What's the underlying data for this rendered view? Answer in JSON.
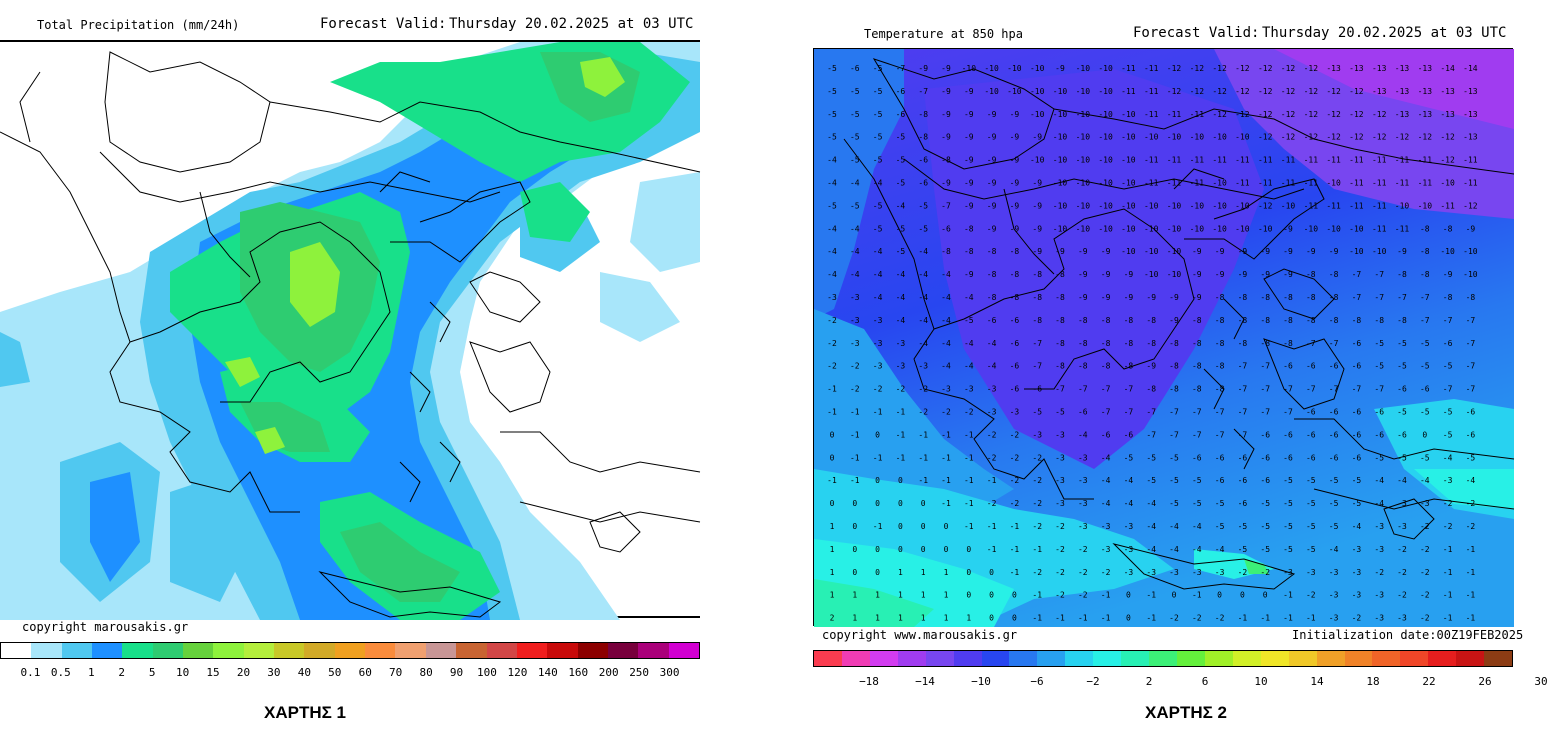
{
  "map1": {
    "title": "Total Precipitation (mm/24h)",
    "forecast_label": "Forecast Valid:",
    "forecast_time": "Thursday 20.02.2025 at 03 UTC",
    "copyright": "copyright marousakis.gr",
    "caption": "ΧΑΡΤΗΣ 1",
    "legend_ticks": [
      "0.1",
      "0.5",
      "1",
      "2",
      "5",
      "10",
      "15",
      "20",
      "30",
      "40",
      "50",
      "60",
      "70",
      "80",
      "90",
      "100",
      "120",
      "140",
      "160",
      "200",
      "250",
      "300"
    ],
    "legend_colors": [
      "#ffffff",
      "#a8e6fa",
      "#50c8f0",
      "#1e90ff",
      "#18e08a",
      "#2ecc71",
      "#66d23c",
      "#8ef23c",
      "#b4ee3c",
      "#c8c828",
      "#d2aa28",
      "#f0a020",
      "#fa8c3c",
      "#f0a070",
      "#c89696",
      "#c86432",
      "#d24646",
      "#f01e1e",
      "#c80a0a",
      "#8c0000",
      "#78003c",
      "#aa007a",
      "#d200d2"
    ]
  },
  "map2": {
    "title": "Temperature at 850 hpa",
    "forecast_label": "Forecast Valid:",
    "forecast_time": "Thursday 20.02.2025 at 03 UTC",
    "copyright": "copyright www.marousakis.gr",
    "init": "Initialization date:00Z19FEB2025",
    "caption": "ΧΑΡΤΗΣ 2",
    "legend_ticks": [
      "−18",
      "−14",
      "−10",
      "−6",
      "−2",
      "2",
      "6",
      "10",
      "14",
      "18",
      "22",
      "26",
      "30"
    ],
    "legend_colors": [
      "#fa3c50",
      "#f03cb4",
      "#d23cf0",
      "#a03cf0",
      "#7846f0",
      "#503cf0",
      "#2846f0",
      "#2878f0",
      "#28a0f0",
      "#28d2f0",
      "#28f0e6",
      "#28f0b4",
      "#3cf078",
      "#64f03c",
      "#a0f028",
      "#d2f028",
      "#f0e628",
      "#f0c828",
      "#f0a028",
      "#f08228",
      "#f06428",
      "#f04628",
      "#e61e1e",
      "#c81414",
      "#8c3c14"
    ],
    "grid_values": [
      [
        -5,
        -6,
        -5,
        -7,
        -9,
        -9,
        -10,
        -10,
        -10,
        -10,
        -9,
        -10,
        -10,
        -11,
        -11,
        -12,
        -12,
        -12,
        -12,
        -12,
        -12,
        -12,
        -13,
        -13,
        -13,
        -13,
        -13,
        -14,
        -14
      ],
      [
        -5,
        -5,
        -5,
        -6,
        -7,
        -9,
        -9,
        -10,
        -10,
        -10,
        -10,
        -10,
        -10,
        -11,
        -11,
        -12,
        -12,
        -12,
        -12,
        -12,
        -12,
        -12,
        -12,
        -12,
        -13,
        -13,
        -13,
        -13,
        -13
      ],
      [
        -5,
        -5,
        -5,
        -6,
        -8,
        -9,
        -9,
        -9,
        -9,
        -10,
        -10,
        -10,
        -10,
        -10,
        -11,
        -11,
        -11,
        -12,
        -12,
        -12,
        -12,
        -12,
        -12,
        -12,
        -12,
        -13,
        -13,
        -13,
        -13
      ],
      [
        -5,
        -5,
        -5,
        -5,
        -8,
        -9,
        -9,
        -9,
        -9,
        -9,
        -10,
        -10,
        -10,
        -10,
        -10,
        -10,
        -10,
        -10,
        -10,
        -12,
        -12,
        -12,
        -12,
        -12,
        -12,
        -12,
        -12,
        -12,
        -13
      ],
      [
        -4,
        -5,
        -5,
        -5,
        -6,
        -8,
        -9,
        -9,
        -9,
        -10,
        -10,
        -10,
        -10,
        -10,
        -11,
        -11,
        -11,
        -11,
        -11,
        -11,
        -11,
        -11,
        -11,
        -11,
        -11,
        -11,
        -11,
        -12,
        -11
      ],
      [
        -4,
        -4,
        -4,
        -5,
        -6,
        -9,
        -9,
        -9,
        -9,
        -9,
        -10,
        -10,
        -10,
        -10,
        -11,
        -11,
        -11,
        -10,
        -11,
        -11,
        -11,
        -11,
        -10,
        -11,
        -11,
        -11,
        -11,
        -10,
        -11
      ],
      [
        -5,
        -5,
        -5,
        -4,
        -5,
        -7,
        -9,
        -9,
        -9,
        -9,
        -10,
        -10,
        -10,
        -10,
        -10,
        -10,
        -10,
        -10,
        -10,
        -12,
        -10,
        -11,
        -11,
        -11,
        -11,
        -10,
        -10,
        -11,
        -12
      ],
      [
        -4,
        -4,
        -5,
        -5,
        -5,
        -6,
        -8,
        -9,
        -9,
        -9,
        -10,
        -10,
        -10,
        -10,
        -10,
        -10,
        -10,
        -10,
        -10,
        -10,
        -9,
        -10,
        -10,
        -10,
        -11,
        -11,
        -8,
        -8,
        -9
      ],
      [
        -4,
        -4,
        -4,
        -5,
        -4,
        -8,
        -8,
        -8,
        -8,
        -9,
        -9,
        -9,
        -9,
        -10,
        -10,
        -10,
        -9,
        -9,
        -9,
        -9,
        -9,
        -9,
        -9,
        -10,
        -10,
        -9,
        -8,
        -10,
        -10
      ],
      [
        -4,
        -4,
        -4,
        -4,
        -4,
        -4,
        -9,
        -8,
        -8,
        -8,
        -8,
        -9,
        -9,
        -9,
        -10,
        -10,
        -9,
        -9,
        -9,
        -9,
        -9,
        -8,
        -8,
        -7,
        -7,
        -8,
        -8,
        -9,
        -10
      ],
      [
        -3,
        -3,
        -4,
        -4,
        -4,
        -4,
        -4,
        -8,
        -8,
        -8,
        -8,
        -9,
        -9,
        -9,
        -9,
        -9,
        -9,
        -8,
        -8,
        -8,
        -8,
        -8,
        -8,
        -7,
        -7,
        -7,
        -7,
        -8,
        -8
      ],
      [
        -2,
        -3,
        -3,
        -4,
        -4,
        -4,
        -5,
        -6,
        -6,
        -8,
        -8,
        -8,
        -8,
        -8,
        -8,
        -9,
        -8,
        -8,
        -8,
        -8,
        -8,
        -8,
        -8,
        -8,
        -8,
        -8,
        -7,
        -7,
        -7
      ],
      [
        -2,
        -3,
        -3,
        -3,
        -4,
        -4,
        -4,
        -4,
        -6,
        -7,
        -8,
        -8,
        -8,
        -8,
        -8,
        -8,
        -8,
        -8,
        -8,
        -8,
        -8,
        -7,
        -7,
        -6,
        -5,
        -5,
        -5,
        -6,
        -7
      ],
      [
        -2,
        -2,
        -3,
        -3,
        -3,
        -4,
        -4,
        -4,
        -6,
        -7,
        -8,
        -8,
        -8,
        -8,
        -9,
        -8,
        -8,
        -8,
        -7,
        -7,
        -6,
        -6,
        -6,
        -6,
        -5,
        -5,
        -5,
        -5,
        -7
      ],
      [
        -1,
        -2,
        -2,
        -2,
        -2,
        -3,
        -3,
        -3,
        -6,
        -6,
        -7,
        -7,
        -7,
        -7,
        -8,
        -8,
        -8,
        -8,
        -7,
        -7,
        -7,
        -7,
        -7,
        -7,
        -7,
        -6,
        -6,
        -7,
        -7
      ],
      [
        -1,
        -1,
        -1,
        -1,
        -2,
        -2,
        -2,
        -3,
        -3,
        -5,
        -5,
        -6,
        -7,
        -7,
        -7,
        -7,
        -7,
        -7,
        -7,
        -7,
        -7,
        -6,
        -6,
        -6,
        -6,
        -5,
        -5,
        -5,
        -6
      ],
      [
        0,
        -1,
        0,
        -1,
        -1,
        -1,
        -1,
        -2,
        -2,
        -3,
        -3,
        -4,
        -6,
        -6,
        -7,
        -7,
        -7,
        -7,
        -7,
        -6,
        -6,
        -6,
        -6,
        -6,
        -6,
        -6,
        0,
        -5,
        -6
      ],
      [
        0,
        -1,
        -1,
        -1,
        -1,
        -1,
        -1,
        -2,
        -2,
        -2,
        -3,
        -3,
        -4,
        -5,
        -5,
        -5,
        -6,
        -6,
        -6,
        -6,
        -6,
        -6,
        -6,
        -6,
        -5,
        -5,
        -5,
        -4,
        -5
      ],
      [
        -1,
        -1,
        0,
        0,
        -1,
        -1,
        -1,
        -1,
        -2,
        -2,
        -3,
        -3,
        -4,
        -4,
        -5,
        -5,
        -5,
        -6,
        -6,
        -6,
        -5,
        -5,
        -5,
        -5,
        -4,
        -4,
        -4,
        -3,
        -4
      ],
      [
        0,
        0,
        0,
        0,
        0,
        -1,
        -1,
        -2,
        -2,
        -2,
        -3,
        -3,
        -4,
        -4,
        -4,
        -5,
        -5,
        -5,
        -6,
        -5,
        -5,
        -5,
        -5,
        -5,
        -4,
        -3,
        -3,
        -2,
        -2
      ],
      [
        1,
        0,
        -1,
        0,
        0,
        0,
        -1,
        -1,
        -1,
        -2,
        -2,
        -3,
        -3,
        -3,
        -4,
        -4,
        -4,
        -5,
        -5,
        -5,
        -5,
        -5,
        -5,
        -4,
        -3,
        -3,
        -2,
        -2,
        -2
      ],
      [
        1,
        0,
        0,
        0,
        0,
        0,
        0,
        -1,
        -1,
        -1,
        -2,
        -2,
        -3,
        -3,
        -4,
        -4,
        -4,
        -4,
        -5,
        -5,
        -5,
        -5,
        -4,
        -3,
        -3,
        -2,
        -2,
        -1,
        -1
      ],
      [
        1,
        0,
        0,
        1,
        1,
        1,
        0,
        0,
        -1,
        -2,
        -2,
        -2,
        -2,
        -3,
        -3,
        -3,
        -3,
        -3,
        -2,
        -2,
        -3,
        -3,
        -3,
        -3,
        -2,
        -2,
        -2,
        -1,
        -1
      ],
      [
        1,
        1,
        1,
        1,
        1,
        1,
        0,
        0,
        0,
        -1,
        -2,
        -2,
        -1,
        0,
        -1,
        0,
        -1,
        0,
        0,
        0,
        -1,
        -2,
        -3,
        -3,
        -3,
        -2,
        -2,
        -1,
        -1
      ],
      [
        2,
        1,
        1,
        1,
        1,
        1,
        1,
        0,
        0,
        -1,
        -1,
        -1,
        -1,
        0,
        -1,
        -2,
        -2,
        -2,
        -1,
        -1,
        -1,
        -1,
        -3,
        -2,
        -3,
        -3,
        -2,
        -1,
        -1
      ]
    ]
  }
}
